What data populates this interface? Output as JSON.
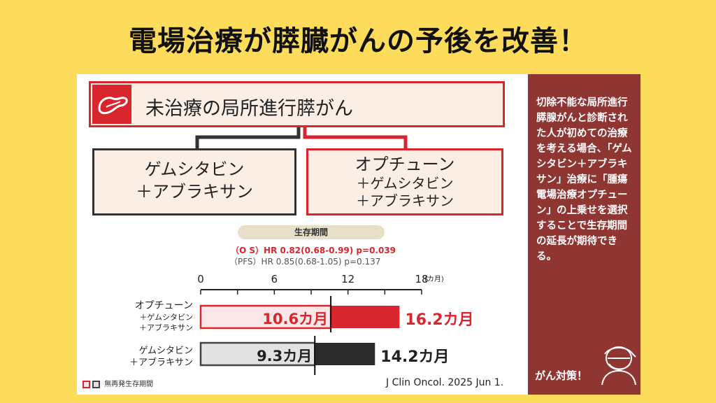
{
  "headline": "電場治療が膵臓がんの予後を改善！",
  "top_box": {
    "label": "未治療の局所進行膵がん"
  },
  "arm_a": {
    "line1": "ゲムシタビン",
    "line2": "＋アブラキサン"
  },
  "arm_b": {
    "line1": "オプチューン",
    "line2": "＋ゲムシタビン",
    "line3": "＋アブラキサン"
  },
  "stats": {
    "section_label": "生存期間",
    "os": "（O S）HR 0.82(0.68-0.99) p=0.039",
    "pfs": "（PFS）HR 0.85(0.68-1.05) p=0.137"
  },
  "chart_data": {
    "type": "bar",
    "orientation": "horizontal",
    "xlim": [
      0,
      18
    ],
    "xticks": [
      "0",
      "6",
      "12",
      "18"
    ],
    "xunit": "(カ月)",
    "categories": [
      {
        "main": "オプチューン",
        "sub1": "＋ゲムシタビン",
        "sub2": "＋アブラキサン"
      },
      {
        "main": "ゲムシタビン",
        "sub1": "＋アブラキサン"
      }
    ],
    "series": [
      {
        "name": "無再発生存期間",
        "values": [
          10.6,
          9.3
        ],
        "labels": [
          "10.6カ月",
          "9.3カ月"
        ]
      },
      {
        "values": [
          16.2,
          14.2
        ],
        "labels": [
          "16.2カ月",
          "14.2カ月"
        ]
      }
    ],
    "legend": "無再発生存期間",
    "colors": {
      "pfs_a": "#f9e6e6",
      "pfs_b": "#e2e2e2",
      "os_a": "#d8262e",
      "os_b": "#2b2b2b"
    }
  },
  "citation": "J Clin Oncol. 2025 Jun 1.",
  "sidebar": {
    "text": "切除不能な局所進行膵腺がんと診断された人が初めての治療を考える場合、「ゲムシタビン＋アブラキサン」治療に「腫瘍電場治療オプチューン」の上乗せを選択することで生存期間の延長が期待できる。",
    "footer": "がん対策！"
  },
  "colors": {
    "background": "#fddc5c",
    "accent": "#d8262e",
    "sidebar": "#8f3532"
  }
}
